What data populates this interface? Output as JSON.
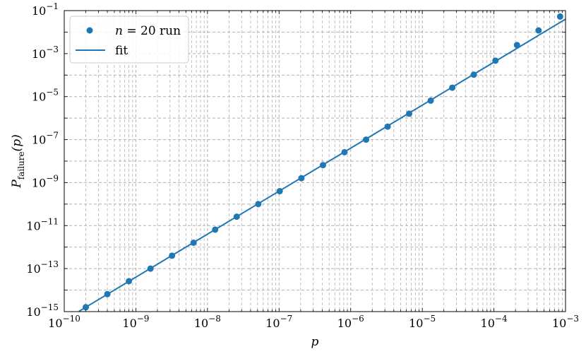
{
  "chart_data": {
    "type": "scatter",
    "title": "",
    "xlabel": "p",
    "ylabel": "P_failure(p)",
    "xscale": "log",
    "yscale": "log",
    "xlim": [
      1e-10,
      0.001
    ],
    "ylim": [
      1e-15,
      0.1
    ],
    "grid": "both major and minor, dashed",
    "legend_position": "top-left",
    "x_ticks": [
      "10^-10",
      "10^-9",
      "10^-8",
      "10^-7",
      "10^-6",
      "10^-5",
      "10^-4",
      "10^-3"
    ],
    "y_ticks": [
      "10^-15",
      "10^-13",
      "10^-11",
      "10^-9",
      "10^-7",
      "10^-5",
      "10^-3",
      "10^-1"
    ],
    "series": [
      {
        "name": "n = 20 run",
        "kind": "scatter",
        "color": "#1f77b4",
        "points": [
          [
            2e-10,
            1.6e-15
          ],
          [
            4e-10,
            6.5e-15
          ],
          [
            8e-10,
            2.6e-14
          ],
          [
            1.6e-09,
            1e-13
          ],
          [
            3.2e-09,
            4e-13
          ],
          [
            6.4e-09,
            1.6e-12
          ],
          [
            1.28e-08,
            6.5e-12
          ],
          [
            2.56e-08,
            2.6e-11
          ],
          [
            5.12e-08,
            1e-10
          ],
          [
            1.02e-07,
            4e-10
          ],
          [
            2.05e-07,
            1.6e-09
          ],
          [
            4.1e-07,
            6.5e-09
          ],
          [
            8.2e-07,
            2.6e-08
          ],
          [
            1.64e-06,
            1e-07
          ],
          [
            3.28e-06,
            4e-07
          ],
          [
            6.55e-06,
            1.6e-06
          ],
          [
            1.31e-05,
            6.5e-06
          ],
          [
            2.62e-05,
            2.6e-05
          ],
          [
            5.24e-05,
            0.000105
          ],
          [
            0.000105,
            0.00047
          ],
          [
            0.00021,
            0.0025
          ],
          [
            0.00042,
            0.012
          ],
          [
            0.00084,
            0.053
          ]
        ]
      },
      {
        "name": "fit",
        "kind": "line",
        "color": "#1f77b4",
        "slope": 2,
        "coefficient": 40000.0,
        "x_range": [
          1.6e-10,
          0.001
        ]
      }
    ]
  },
  "legend": {
    "entries": [
      {
        "label_prefix": "n",
        "label_eq": " = 20 run"
      },
      {
        "label": "fit"
      }
    ]
  },
  "axes": {
    "xlabel": "p",
    "ylabel_main": "P",
    "ylabel_sub": "failure",
    "ylabel_tail": "(p)"
  }
}
